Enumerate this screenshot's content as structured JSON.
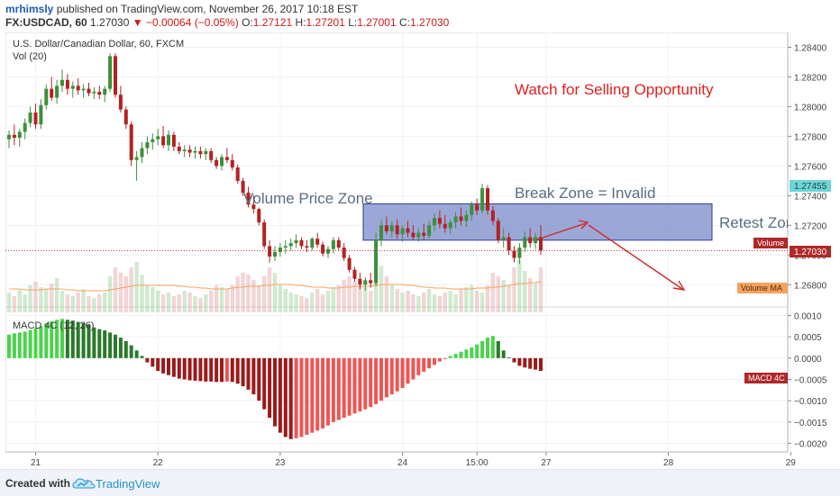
{
  "header": {
    "author": "mrhimsly",
    "published_text": "published on TradingView.com, November 26, 2017 10:18 EST",
    "symbol": "FX:USDCAD, 60",
    "last": "1.27030",
    "change": "▼ −0.00064 (−0.05%)",
    "ohlc": [
      {
        "label": "O:",
        "value": "1.27121"
      },
      {
        "label": "H:",
        "value": "1.27201"
      },
      {
        "label": "L:",
        "value": "1.27001"
      },
      {
        "label": "C:",
        "value": "1.27030"
      }
    ]
  },
  "legend": {
    "title": "U.S. Dollar/Canadian Dollar, 60, FXCM",
    "vol": "Vol (20)",
    "macd": "MACD 4C (12, 26)"
  },
  "annotations": {
    "watch": "Watch for Selling Opportunity",
    "volume_zone": "Volume Price Zone",
    "break_zone": "Break Zone = Invalid",
    "retest": "Retest Zone"
  },
  "price_axis": {
    "ticks": [
      "1.28400",
      "1.28200",
      "1.28000",
      "1.27800",
      "1.27600",
      "1.27400",
      "1.27200",
      "1.27000",
      "1.26800"
    ],
    "labels": [
      {
        "text": "1.27455",
        "kind": "zone"
      },
      {
        "text": "Volume",
        "kind": "volume"
      },
      {
        "text": "1.27030",
        "kind": "price"
      },
      {
        "text": "Volume MA",
        "kind": "volma"
      }
    ]
  },
  "macd_axis": {
    "ticks": [
      "0.0010",
      "0.0005",
      "0.0000",
      "−0.0005",
      "−0.0010",
      "−0.0015",
      "−0.0020"
    ],
    "label": "MACD 4C"
  },
  "time_axis": {
    "ticks": [
      "21",
      "22",
      "23",
      "24",
      "15:00",
      "27",
      "28",
      "29"
    ]
  },
  "footer": {
    "created_with": "Created with",
    "brand": "TradingView"
  },
  "colors": {
    "up": "#3d8f3d",
    "down": "#b22222",
    "zone": "#6b7fc4",
    "annotation_red": "#e02020",
    "annotation_grey": "#5b6f80",
    "macd_pos_bright": "#4cd34c",
    "macd_pos_dark": "#2a7a2a",
    "macd_neg_bright": "#ee5555",
    "macd_neg_dark": "#9b1b1b"
  },
  "chart_data": {
    "type": "candlestick",
    "instrument": "FX:USDCAD",
    "interval": "60",
    "price_range": [
      1.2665,
      1.285
    ],
    "macd_range": [
      -0.0022,
      0.0012
    ],
    "zone": {
      "low": 1.271,
      "high": 1.27345
    },
    "days": [
      "21",
      "22",
      "23",
      "24",
      "27",
      "28",
      "29"
    ],
    "candles": [
      {
        "o": 1.2778,
        "h": 1.2784,
        "l": 1.2772,
        "c": 1.2781
      },
      {
        "o": 1.2781,
        "h": 1.2788,
        "l": 1.2774,
        "c": 1.2779
      },
      {
        "o": 1.2779,
        "h": 1.2785,
        "l": 1.2773,
        "c": 1.2783
      },
      {
        "o": 1.2783,
        "h": 1.2792,
        "l": 1.2778,
        "c": 1.2789
      },
      {
        "o": 1.2789,
        "h": 1.28,
        "l": 1.2786,
        "c": 1.2796
      },
      {
        "o": 1.2796,
        "h": 1.2802,
        "l": 1.2785,
        "c": 1.2788
      },
      {
        "o": 1.2788,
        "h": 1.2805,
        "l": 1.2785,
        "c": 1.2801
      },
      {
        "o": 1.2801,
        "h": 1.2815,
        "l": 1.2798,
        "c": 1.2812
      },
      {
        "o": 1.2812,
        "h": 1.282,
        "l": 1.2804,
        "c": 1.2806
      },
      {
        "o": 1.2806,
        "h": 1.2818,
        "l": 1.2802,
        "c": 1.2814
      },
      {
        "o": 1.2814,
        "h": 1.2825,
        "l": 1.281,
        "c": 1.2818
      },
      {
        "o": 1.2818,
        "h": 1.2822,
        "l": 1.2808,
        "c": 1.2812
      },
      {
        "o": 1.2812,
        "h": 1.2817,
        "l": 1.2806,
        "c": 1.2814
      },
      {
        "o": 1.2814,
        "h": 1.2819,
        "l": 1.2808,
        "c": 1.2811
      },
      {
        "o": 1.2811,
        "h": 1.2815,
        "l": 1.2806,
        "c": 1.2812
      },
      {
        "o": 1.2812,
        "h": 1.2816,
        "l": 1.2807,
        "c": 1.2809
      },
      {
        "o": 1.2809,
        "h": 1.2813,
        "l": 1.2805,
        "c": 1.281
      },
      {
        "o": 1.281,
        "h": 1.2814,
        "l": 1.2805,
        "c": 1.2808
      },
      {
        "o": 1.2808,
        "h": 1.2814,
        "l": 1.2803,
        "c": 1.2812
      },
      {
        "o": 1.2812,
        "h": 1.2836,
        "l": 1.281,
        "c": 1.2834
      },
      {
        "o": 1.2834,
        "h": 1.2836,
        "l": 1.2806,
        "c": 1.2808
      },
      {
        "o": 1.2808,
        "h": 1.2814,
        "l": 1.2796,
        "c": 1.2798
      },
      {
        "o": 1.2798,
        "h": 1.28,
        "l": 1.2785,
        "c": 1.2788
      },
      {
        "o": 1.2788,
        "h": 1.279,
        "l": 1.276,
        "c": 1.2764
      },
      {
        "o": 1.2764,
        "h": 1.277,
        "l": 1.275,
        "c": 1.2766
      },
      {
        "o": 1.2766,
        "h": 1.2776,
        "l": 1.2762,
        "c": 1.2772
      },
      {
        "o": 1.2772,
        "h": 1.278,
        "l": 1.2768,
        "c": 1.2776
      },
      {
        "o": 1.2776,
        "h": 1.2782,
        "l": 1.2771,
        "c": 1.2778
      },
      {
        "o": 1.2778,
        "h": 1.2785,
        "l": 1.2774,
        "c": 1.278
      },
      {
        "o": 1.278,
        "h": 1.2787,
        "l": 1.2772,
        "c": 1.2774
      },
      {
        "o": 1.2774,
        "h": 1.2784,
        "l": 1.277,
        "c": 1.2781
      },
      {
        "o": 1.2781,
        "h": 1.2783,
        "l": 1.277,
        "c": 1.2773
      },
      {
        "o": 1.2773,
        "h": 1.2776,
        "l": 1.2768,
        "c": 1.277
      },
      {
        "o": 1.277,
        "h": 1.2774,
        "l": 1.2766,
        "c": 1.2771
      },
      {
        "o": 1.2771,
        "h": 1.2774,
        "l": 1.2766,
        "c": 1.2769
      },
      {
        "o": 1.2769,
        "h": 1.2773,
        "l": 1.2765,
        "c": 1.277
      },
      {
        "o": 1.277,
        "h": 1.2773,
        "l": 1.2765,
        "c": 1.2768
      },
      {
        "o": 1.2768,
        "h": 1.2772,
        "l": 1.2764,
        "c": 1.277
      },
      {
        "o": 1.277,
        "h": 1.2772,
        "l": 1.2762,
        "c": 1.2764
      },
      {
        "o": 1.2764,
        "h": 1.2766,
        "l": 1.2758,
        "c": 1.276
      },
      {
        "o": 1.276,
        "h": 1.2768,
        "l": 1.2757,
        "c": 1.2766
      },
      {
        "o": 1.2766,
        "h": 1.2772,
        "l": 1.2762,
        "c": 1.2764
      },
      {
        "o": 1.2764,
        "h": 1.2768,
        "l": 1.2757,
        "c": 1.2759
      },
      {
        "o": 1.2759,
        "h": 1.2761,
        "l": 1.2748,
        "c": 1.275
      },
      {
        "o": 1.275,
        "h": 1.2752,
        "l": 1.274,
        "c": 1.2742
      },
      {
        "o": 1.2742,
        "h": 1.2746,
        "l": 1.2732,
        "c": 1.2734
      },
      {
        "o": 1.2734,
        "h": 1.274,
        "l": 1.2728,
        "c": 1.2731
      },
      {
        "o": 1.2731,
        "h": 1.2732,
        "l": 1.272,
        "c": 1.2722
      },
      {
        "o": 1.2722,
        "h": 1.2724,
        "l": 1.2704,
        "c": 1.2706
      },
      {
        "o": 1.2706,
        "h": 1.271,
        "l": 1.2695,
        "c": 1.2699
      },
      {
        "o": 1.2699,
        "h": 1.2706,
        "l": 1.2696,
        "c": 1.2702
      },
      {
        "o": 1.2702,
        "h": 1.2708,
        "l": 1.2699,
        "c": 1.2705
      },
      {
        "o": 1.2705,
        "h": 1.271,
        "l": 1.2701,
        "c": 1.2706
      },
      {
        "o": 1.2706,
        "h": 1.2711,
        "l": 1.2703,
        "c": 1.2708
      },
      {
        "o": 1.2708,
        "h": 1.2714,
        "l": 1.2705,
        "c": 1.271
      },
      {
        "o": 1.271,
        "h": 1.2712,
        "l": 1.2704,
        "c": 1.2706
      },
      {
        "o": 1.2706,
        "h": 1.271,
        "l": 1.2702,
        "c": 1.2705
      },
      {
        "o": 1.2705,
        "h": 1.2712,
        "l": 1.2703,
        "c": 1.2711
      },
      {
        "o": 1.2711,
        "h": 1.2715,
        "l": 1.2705,
        "c": 1.2707
      },
      {
        "o": 1.2707,
        "h": 1.2709,
        "l": 1.2699,
        "c": 1.2701
      },
      {
        "o": 1.2701,
        "h": 1.2706,
        "l": 1.2698,
        "c": 1.2704
      },
      {
        "o": 1.2704,
        "h": 1.2712,
        "l": 1.2701,
        "c": 1.271
      },
      {
        "o": 1.271,
        "h": 1.2712,
        "l": 1.2703,
        "c": 1.2705
      },
      {
        "o": 1.2705,
        "h": 1.2708,
        "l": 1.2696,
        "c": 1.2698
      },
      {
        "o": 1.2698,
        "h": 1.27,
        "l": 1.2688,
        "c": 1.269
      },
      {
        "o": 1.269,
        "h": 1.2692,
        "l": 1.2682,
        "c": 1.2684
      },
      {
        "o": 1.2684,
        "h": 1.2688,
        "l": 1.2677,
        "c": 1.268
      },
      {
        "o": 1.268,
        "h": 1.2685,
        "l": 1.2676,
        "c": 1.2683
      },
      {
        "o": 1.2683,
        "h": 1.2688,
        "l": 1.2678,
        "c": 1.2681
      },
      {
        "o": 1.2681,
        "h": 1.2715,
        "l": 1.2679,
        "c": 1.271
      },
      {
        "o": 1.271,
        "h": 1.2724,
        "l": 1.2706,
        "c": 1.272
      },
      {
        "o": 1.272,
        "h": 1.2726,
        "l": 1.2714,
        "c": 1.2716
      },
      {
        "o": 1.2716,
        "h": 1.2723,
        "l": 1.2712,
        "c": 1.272
      },
      {
        "o": 1.272,
        "h": 1.2724,
        "l": 1.2711,
        "c": 1.2714
      },
      {
        "o": 1.2714,
        "h": 1.272,
        "l": 1.2709,
        "c": 1.2718
      },
      {
        "o": 1.2718,
        "h": 1.2723,
        "l": 1.2712,
        "c": 1.2715
      },
      {
        "o": 1.2715,
        "h": 1.272,
        "l": 1.271,
        "c": 1.2712
      },
      {
        "o": 1.2712,
        "h": 1.2718,
        "l": 1.2709,
        "c": 1.2715
      },
      {
        "o": 1.2715,
        "h": 1.2721,
        "l": 1.271,
        "c": 1.2713
      },
      {
        "o": 1.2713,
        "h": 1.2723,
        "l": 1.2711,
        "c": 1.272
      },
      {
        "o": 1.272,
        "h": 1.2728,
        "l": 1.2716,
        "c": 1.2725
      },
      {
        "o": 1.2725,
        "h": 1.273,
        "l": 1.2718,
        "c": 1.2721
      },
      {
        "o": 1.2721,
        "h": 1.2727,
        "l": 1.2715,
        "c": 1.2718
      },
      {
        "o": 1.2718,
        "h": 1.2724,
        "l": 1.2714,
        "c": 1.2722
      },
      {
        "o": 1.2722,
        "h": 1.2729,
        "l": 1.2718,
        "c": 1.2726
      },
      {
        "o": 1.2726,
        "h": 1.2732,
        "l": 1.272,
        "c": 1.2723
      },
      {
        "o": 1.2723,
        "h": 1.273,
        "l": 1.2719,
        "c": 1.2727
      },
      {
        "o": 1.2727,
        "h": 1.2736,
        "l": 1.2723,
        "c": 1.2734
      },
      {
        "o": 1.2734,
        "h": 1.2738,
        "l": 1.2727,
        "c": 1.273
      },
      {
        "o": 1.273,
        "h": 1.2748,
        "l": 1.2728,
        "c": 1.2745
      },
      {
        "o": 1.2745,
        "h": 1.2747,
        "l": 1.2727,
        "c": 1.273
      },
      {
        "o": 1.273,
        "h": 1.2733,
        "l": 1.272,
        "c": 1.2723
      },
      {
        "o": 1.2723,
        "h": 1.2725,
        "l": 1.2708,
        "c": 1.271
      },
      {
        "o": 1.271,
        "h": 1.2718,
        "l": 1.2705,
        "c": 1.2712
      },
      {
        "o": 1.2712,
        "h": 1.2715,
        "l": 1.27,
        "c": 1.2703
      },
      {
        "o": 1.2703,
        "h": 1.2706,
        "l": 1.2695,
        "c": 1.2698
      },
      {
        "o": 1.2698,
        "h": 1.2708,
        "l": 1.2694,
        "c": 1.2705
      },
      {
        "o": 1.2705,
        "h": 1.2716,
        "l": 1.2702,
        "c": 1.2712
      },
      {
        "o": 1.2712,
        "h": 1.2718,
        "l": 1.2705,
        "c": 1.2708
      },
      {
        "o": 1.2708,
        "h": 1.2715,
        "l": 1.2704,
        "c": 1.27121
      },
      {
        "o": 1.27121,
        "h": 1.27201,
        "l": 1.27001,
        "c": 1.2703
      }
    ],
    "macd": [
      0.00055,
      0.00058,
      0.0006,
      0.00062,
      0.00066,
      0.0007,
      0.00075,
      0.00082,
      0.00086,
      0.0009,
      0.00092,
      0.0009,
      0.00088,
      0.00085,
      0.00082,
      0.00078,
      0.00072,
      0.00068,
      0.00065,
      0.0006,
      0.00055,
      0.00048,
      0.0004,
      0.0003,
      0.00018,
      5e-05,
      -0.0001,
      -0.0002,
      -0.0003,
      -0.00036,
      -0.0004,
      -0.00044,
      -0.00048,
      -0.0005,
      -0.00052,
      -0.00053,
      -0.00054,
      -0.00055,
      -0.00055,
      -0.00056,
      -0.00056,
      -0.00055,
      -0.00056,
      -0.0006,
      -0.00066,
      -0.00074,
      -0.00085,
      -0.001,
      -0.0012,
      -0.0014,
      -0.0016,
      -0.00175,
      -0.00185,
      -0.0019,
      -0.00188,
      -0.00185,
      -0.0018,
      -0.00175,
      -0.0017,
      -0.00165,
      -0.00158,
      -0.0015,
      -0.00145,
      -0.0014,
      -0.00135,
      -0.0013,
      -0.00125,
      -0.0012,
      -0.00115,
      -0.00108,
      -0.001,
      -0.00092,
      -0.00085,
      -0.00078,
      -0.0007,
      -0.0006,
      -0.0005,
      -0.0004,
      -0.00032,
      -0.00024,
      -0.00016,
      -8e-05,
      -2e-05,
      5e-05,
      0.0001,
      0.00015,
      0.0002,
      0.00025,
      0.00032,
      0.0004,
      0.00048,
      0.00052,
      0.0004,
      0.00018,
      2e-05,
      -0.0001,
      -0.00018,
      -0.00022,
      -0.00025,
      -0.00027,
      -0.0003
    ],
    "volumes": [
      22,
      18,
      25,
      20,
      30,
      34,
      28,
      26,
      32,
      38,
      24,
      20,
      18,
      22,
      26,
      18,
      16,
      20,
      22,
      40,
      50,
      44,
      40,
      50,
      56,
      42,
      30,
      28,
      24,
      20,
      22,
      18,
      20,
      24,
      22,
      18,
      16,
      20,
      24,
      30,
      28,
      26,
      30,
      40,
      44,
      42,
      36,
      30,
      40,
      50,
      44,
      30,
      26,
      22,
      20,
      18,
      16,
      22,
      26,
      20,
      24,
      28,
      30,
      36,
      40,
      34,
      30,
      28,
      24,
      60,
      52,
      40,
      30,
      26,
      22,
      24,
      20,
      18,
      22,
      26,
      20,
      18,
      22,
      24,
      20,
      26,
      28,
      30,
      24,
      22,
      30,
      44,
      40,
      36,
      30,
      50,
      58,
      46,
      38,
      32,
      50
    ],
    "volume_ma": [
      26,
      26,
      26,
      25,
      25,
      25,
      25,
      26,
      26,
      26,
      26,
      25,
      25,
      24,
      24,
      24,
      24,
      24,
      24,
      25,
      26,
      27,
      28,
      29,
      30,
      30,
      30,
      30,
      30,
      30,
      30,
      30,
      29,
      29,
      28,
      28,
      27,
      27,
      26,
      26,
      26,
      26,
      27,
      28,
      28,
      29,
      29,
      29,
      30,
      30,
      31,
      31,
      31,
      31,
      30,
      30,
      29,
      28,
      28,
      28,
      27,
      27,
      27,
      28,
      28,
      29,
      29,
      29,
      29,
      30,
      31,
      31,
      31,
      31,
      31,
      30,
      30,
      29,
      28,
      28,
      27,
      27,
      27,
      26,
      26,
      26,
      26,
      26,
      27,
      27,
      27,
      28,
      28,
      29,
      30,
      31,
      32,
      32,
      33,
      33,
      34
    ]
  }
}
